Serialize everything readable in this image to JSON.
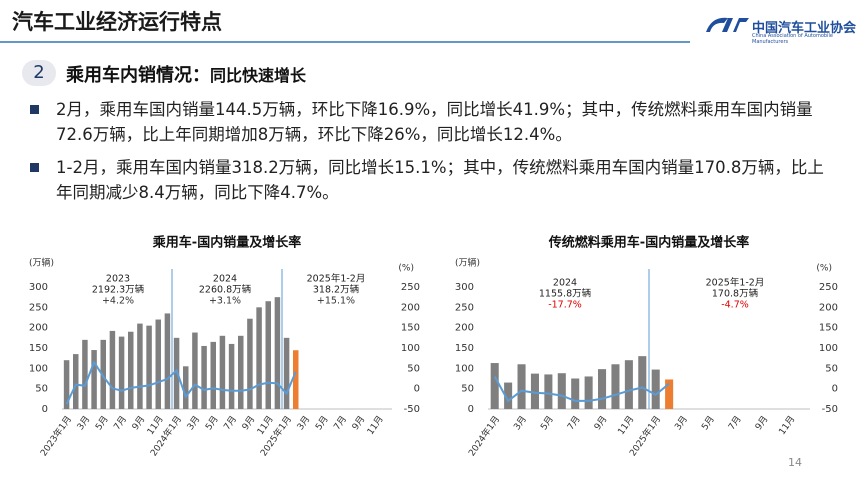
{
  "header": {
    "title": "汽车工业经济运行特点",
    "logo_cn": "中国汽车工业协会",
    "logo_en": "China Association of Automobile Manufacturers"
  },
  "section": {
    "number": "2",
    "title": "乘用车内销情况：",
    "subtitle": "同比快速增长"
  },
  "bullets": [
    "2月，乘用车国内销量144.5万辆，环比下降16.9%，同比增长41.9%；其中，传统燃料乘用车国内销量72.6万辆，比上年同期增加8万辆，环比下降26%，同比增长12.4%。",
    "1-2月，乘用车国内销量318.2万辆，同比增长15.1%；其中，传统燃料乘用车国内销量170.8万辆，比上年同期减少8.4万辆，同比下降4.7%。"
  ],
  "chart_data": [
    {
      "type": "combo",
      "title": "乘用车-国内销量及增长率",
      "y_label": "(万辆)",
      "y2_label": "(%)",
      "categories": [
        "2023年1月",
        null,
        "3月",
        null,
        "5月",
        null,
        "7月",
        null,
        "9月",
        null,
        "11月",
        null,
        "2024年1月",
        null,
        "3月",
        null,
        "5月",
        null,
        "7月",
        null,
        "9月",
        null,
        "11月",
        null,
        "2025年1月",
        null,
        "3月",
        null,
        "5月",
        null,
        "7月",
        null,
        "9月",
        null,
        "11月",
        null
      ],
      "series": [
        {
          "type": "bar",
          "color": "#7f7f7f",
          "colors": [
            "#7f7f7f",
            "#7f7f7f",
            "#7f7f7f",
            "#7f7f7f",
            "#7f7f7f",
            "#7f7f7f",
            "#7f7f7f",
            "#7f7f7f",
            "#7f7f7f",
            "#7f7f7f",
            "#7f7f7f",
            "#7f7f7f",
            "#7f7f7f",
            "#7f7f7f",
            "#7f7f7f",
            "#7f7f7f",
            "#7f7f7f",
            "#7f7f7f",
            "#7f7f7f",
            "#7f7f7f",
            "#7f7f7f",
            "#7f7f7f",
            "#7f7f7f",
            "#7f7f7f",
            "#7f7f7f",
            "#ed7d31",
            null,
            null,
            null,
            null,
            null,
            null,
            null,
            null,
            null,
            null
          ],
          "values": [
            120,
            135,
            170,
            145,
            170,
            192,
            178,
            190,
            210,
            205,
            220,
            235,
            175,
            105,
            188,
            155,
            165,
            180,
            160,
            180,
            222,
            250,
            265,
            275,
            175,
            144.5,
            null,
            null,
            null,
            null,
            null,
            null,
            null,
            null,
            null,
            null
          ]
        },
        {
          "type": "line",
          "color": "#5b9bd5",
          "axis": "y2",
          "values": [
            -38,
            10,
            7,
            65,
            30,
            1,
            -5,
            2,
            5,
            8,
            16,
            24,
            45,
            -20,
            10,
            -3,
            1,
            -3,
            -5,
            -5,
            -2,
            10,
            15,
            13,
            -12,
            41.9,
            null,
            null,
            null,
            null,
            null,
            null,
            null,
            null,
            null,
            null
          ]
        }
      ],
      "ylim": [
        0,
        300
      ],
      "yticks": [
        0,
        50,
        100,
        150,
        200,
        250,
        300
      ],
      "y2lim": [
        -50,
        250
      ],
      "y2ticks": [
        -50,
        0,
        50,
        100,
        150,
        200,
        250
      ],
      "annotations": [
        {
          "label": "2023",
          "volume": "2192.3万辆",
          "growth": "+4.2%",
          "color": "#333333"
        },
        {
          "label": "2024",
          "volume": "2260.8万辆",
          "growth": "+3.1%",
          "color": "#333333"
        },
        {
          "label": "2025年1-2月",
          "volume": "318.2万辆",
          "growth": "+15.1%",
          "color": "#333333"
        }
      ]
    },
    {
      "type": "combo",
      "title": "传统燃料乘用车-国内销量及增长率",
      "y_label": "(万辆)",
      "y2_label": "(%)",
      "categories": [
        "2024年1月",
        null,
        "3月",
        null,
        "5月",
        null,
        "7月",
        null,
        "9月",
        null,
        "11月",
        null,
        "2025年1月",
        null,
        "3月",
        null,
        "5月",
        null,
        "7月",
        null,
        "9月",
        null,
        "11月",
        null
      ],
      "series": [
        {
          "type": "bar",
          "color": "#7f7f7f",
          "colors": [
            "#7f7f7f",
            "#7f7f7f",
            "#7f7f7f",
            "#7f7f7f",
            "#7f7f7f",
            "#7f7f7f",
            "#7f7f7f",
            "#7f7f7f",
            "#7f7f7f",
            "#7f7f7f",
            "#7f7f7f",
            "#7f7f7f",
            "#7f7f7f",
            "#ed7d31",
            null,
            null,
            null,
            null,
            null,
            null,
            null,
            null,
            null,
            null
          ],
          "values": [
            113,
            65,
            110,
            87,
            85,
            88,
            75,
            80,
            98,
            110,
            120,
            130,
            97,
            72.6,
            null,
            null,
            null,
            null,
            null,
            null,
            null,
            null,
            null,
            null
          ]
        },
        {
          "type": "line",
          "color": "#5b9bd5",
          "axis": "y2",
          "values": [
            30,
            -30,
            -5,
            -10,
            -12,
            -17,
            -30,
            -30,
            -25,
            -15,
            -5,
            3,
            -15,
            12.4,
            null,
            null,
            null,
            null,
            null,
            null,
            null,
            null,
            null,
            null
          ]
        }
      ],
      "ylim": [
        0,
        300
      ],
      "yticks": [
        0,
        50,
        100,
        150,
        200,
        250,
        300
      ],
      "y2lim": [
        -50,
        250
      ],
      "y2ticks": [
        -50,
        0,
        50,
        100,
        150,
        200,
        250
      ],
      "annotations": [
        {
          "label": "2024",
          "volume": "1155.8万辆",
          "growth": "-17.7%",
          "color": "#e00000"
        },
        {
          "label": "2025年1-2月",
          "volume": "170.8万辆",
          "growth": "-4.7%",
          "color": "#e00000"
        }
      ]
    }
  ],
  "page_number": "14"
}
